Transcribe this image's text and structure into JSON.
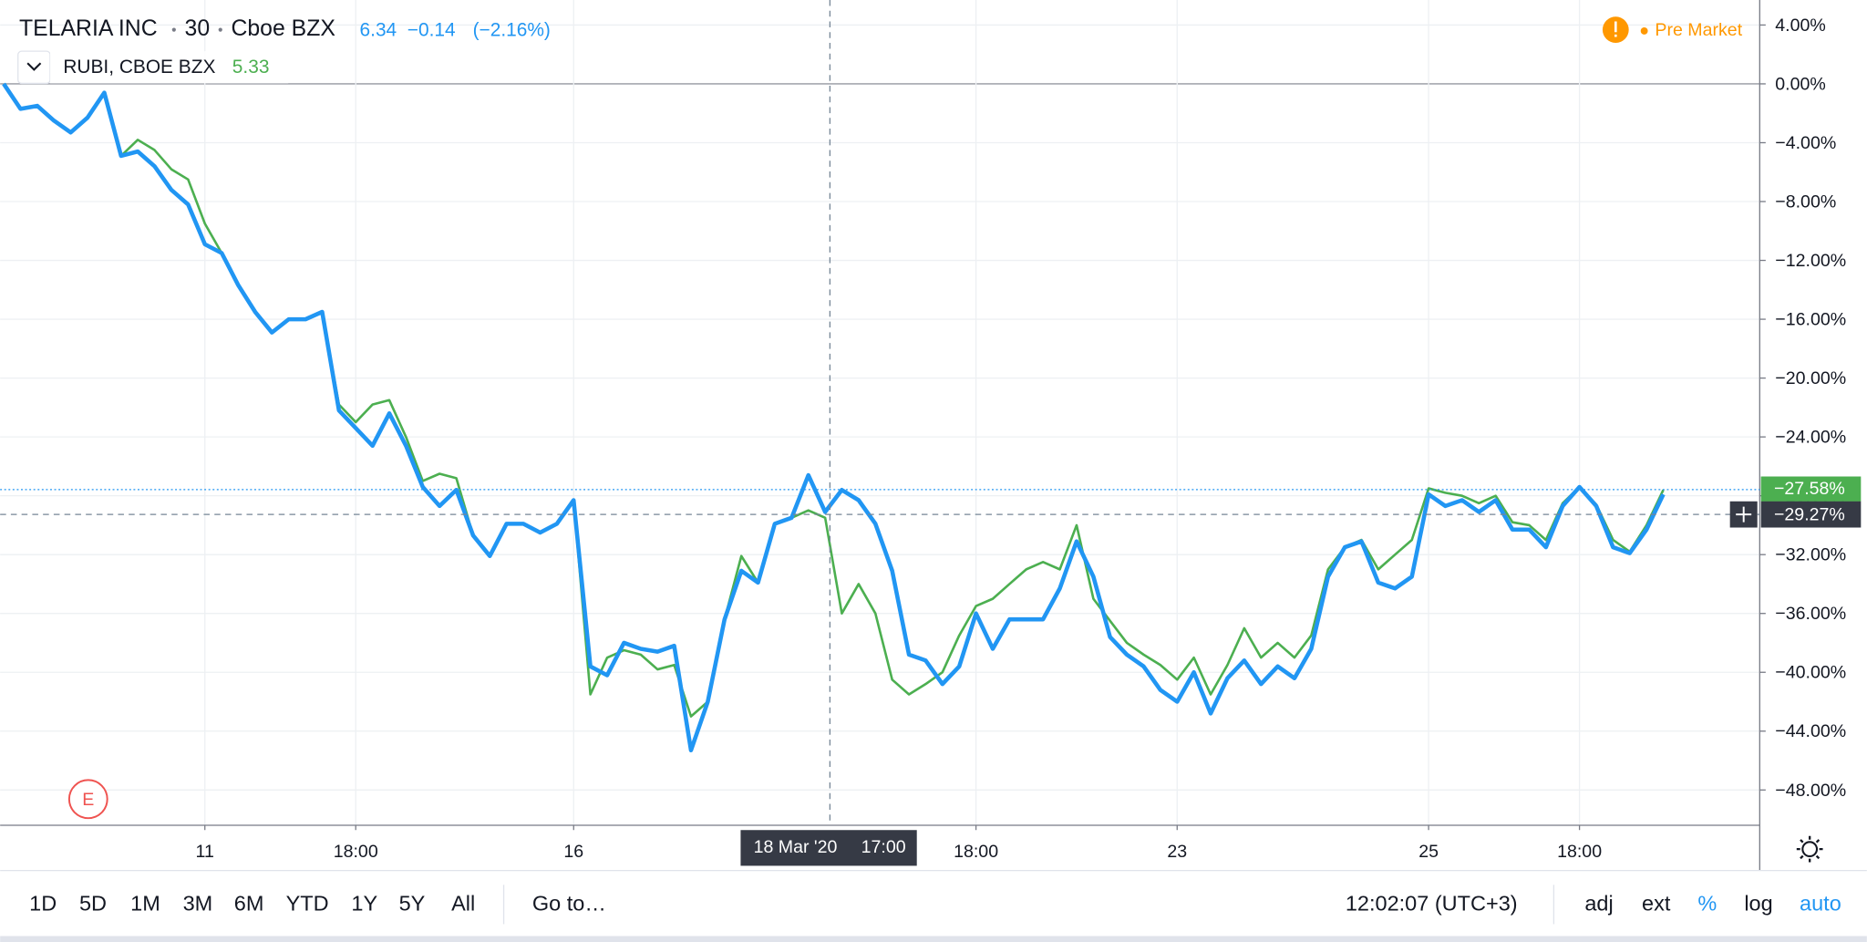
{
  "header": {
    "symbol": "TELARIA INC",
    "interval": "30",
    "exchange": "Cboe BZX",
    "price": "6.34",
    "change": "−0.14",
    "change_pct": "(−2.16%)",
    "compare_price": "5.33",
    "session": "Pre Market",
    "event": "E"
  },
  "chart_data": {
    "type": "line",
    "categories": [
      null,
      null,
      null,
      null,
      null,
      null,
      null,
      null,
      null,
      null,
      null,
      null,
      "11",
      null,
      null,
      null,
      null,
      null,
      null,
      null,
      null,
      "18:00",
      null,
      null,
      null,
      null,
      null,
      null,
      null,
      null,
      null,
      null,
      null,
      null,
      "16",
      null,
      null,
      null,
      null,
      null,
      null,
      null,
      null,
      null,
      null,
      null,
      null,
      null,
      null,
      null,
      null,
      null,
      null,
      null,
      null,
      null,
      null,
      null,
      "18:00",
      null,
      null,
      null,
      null,
      null,
      null,
      null,
      null,
      null,
      null,
      null,
      "23",
      null,
      null,
      null,
      null,
      null,
      null,
      null,
      null,
      null,
      null,
      null,
      null,
      null,
      null,
      "25",
      null,
      null,
      null,
      null,
      null,
      null,
      null,
      null,
      "18:00",
      null,
      null,
      null,
      null,
      null
    ],
    "series": [
      {
        "name": "RUBI, CBOE BZX",
        "color": "#4caf50",
        "values": [
          0,
          -1.7,
          -1.5,
          -2.5,
          -3.3,
          -2.3,
          -0.6,
          -4.9,
          -3.8,
          -4.5,
          -5.8,
          -6.5,
          -9.5,
          -11.5,
          -13.7,
          -15.5,
          -16.9,
          -16.0,
          -16.0,
          -15.5,
          -21.8,
          -23.0,
          -21.8,
          -21.5,
          -24.0,
          -27.0,
          -26.5,
          -26.8,
          -30.7,
          -32.1,
          -29.9,
          -29.9,
          -30.5,
          -29.9,
          -28.3,
          -41.5,
          -39.0,
          -38.5,
          -38.8,
          -39.8,
          -39.5,
          -43.0,
          -42.0,
          -36.4,
          -32.1,
          -33.9,
          -29.9,
          -29.5,
          -29.0,
          -29.5,
          -36.0,
          -34.0,
          -36.0,
          -40.5,
          -41.5,
          -40.8,
          -40.0,
          -37.5,
          -35.5,
          -35.0,
          -34.0,
          -33.0,
          -32.5,
          -33.0,
          -30.0,
          -35.0,
          -36.5,
          -38.0,
          -38.8,
          -39.5,
          -40.5,
          -39.0,
          -41.5,
          -39.5,
          -37.0,
          -39.0,
          -38.0,
          -39.0,
          -37.5,
          -33.0,
          -31.5,
          -31.0,
          -33.0,
          -32.0,
          -31.0,
          -27.5,
          -27.8,
          -28.0,
          -28.5,
          -28.0,
          -29.8,
          -30.0,
          -31.0,
          -28.5,
          -27.4,
          -28.6,
          -31.0,
          -31.8,
          -30.0,
          -27.6
        ]
      },
      {
        "name": "TELARIA INC",
        "color": "#2196f3",
        "values": [
          0,
          -1.7,
          -1.5,
          -2.5,
          -3.3,
          -2.3,
          -0.6,
          -4.9,
          -4.6,
          -5.6,
          -7.2,
          -8.2,
          -10.9,
          -11.5,
          -13.7,
          -15.5,
          -16.9,
          -16.0,
          -16.0,
          -15.5,
          -22.2,
          -23.4,
          -24.6,
          -22.4,
          -24.6,
          -27.4,
          -28.7,
          -27.6,
          -30.7,
          -32.1,
          -29.9,
          -29.9,
          -30.5,
          -29.9,
          -28.3,
          -39.6,
          -40.2,
          -38.0,
          -38.4,
          -38.6,
          -38.2,
          -45.3,
          -42.0,
          -36.4,
          -33.1,
          -33.9,
          -29.9,
          -29.5,
          -26.6,
          -29.1,
          -27.6,
          -28.3,
          -29.9,
          -33.1,
          -38.8,
          -39.2,
          -40.8,
          -39.6,
          -36.0,
          -38.4,
          -36.4,
          -36.4,
          -36.4,
          -34.3,
          -31.1,
          -33.5,
          -37.6,
          -38.8,
          -39.6,
          -41.2,
          -42.0,
          -40.0,
          -42.8,
          -40.4,
          -39.2,
          -40.8,
          -39.6,
          -40.4,
          -38.4,
          -33.5,
          -31.5,
          -31.1,
          -33.9,
          -34.3,
          -33.5,
          -27.9,
          -28.7,
          -28.3,
          -29.1,
          -28.3,
          -30.3,
          -30.3,
          -31.5,
          -28.7,
          -27.4,
          -28.7,
          -31.5,
          -31.9,
          -30.3,
          -27.9
        ]
      }
    ],
    "ylim": [
      -50.4,
      5.7
    ],
    "yticks": [
      {
        "value": 4,
        "label": "4.00%"
      },
      {
        "value": 0,
        "label": "0.00%"
      },
      {
        "value": -4,
        "label": "−4.00%"
      },
      {
        "value": -8,
        "label": "−8.00%"
      },
      {
        "value": -12,
        "label": "−12.00%"
      },
      {
        "value": -16,
        "label": "−16.00%"
      },
      {
        "value": -20,
        "label": "−20.00%"
      },
      {
        "value": -24,
        "label": "−24.00%"
      },
      {
        "value": -28,
        "label": "−28.00%"
      },
      {
        "value": -32,
        "label": "−32.00%"
      },
      {
        "value": -36,
        "label": "−36.00%"
      },
      {
        "value": -40,
        "label": "−40.00%"
      },
      {
        "value": -44,
        "label": "−44.00%"
      },
      {
        "value": -48,
        "label": "−48.00%"
      }
    ],
    "grid": true,
    "last_label": {
      "value": -27.58,
      "label": "−27.58%"
    },
    "crosshair": {
      "date": "18 Mar '20",
      "time": "17:00",
      "value": -29.27,
      "label": "−29.27%"
    }
  },
  "toolbar": {
    "ranges": [
      "1D",
      "5D",
      "1M",
      "3M",
      "6M",
      "YTD",
      "1Y",
      "5Y",
      "All"
    ],
    "goto": "Go to…",
    "clock": "12:02:07 (UTC+3)",
    "options": [
      "adj",
      "ext",
      "%",
      "log",
      "auto"
    ]
  }
}
